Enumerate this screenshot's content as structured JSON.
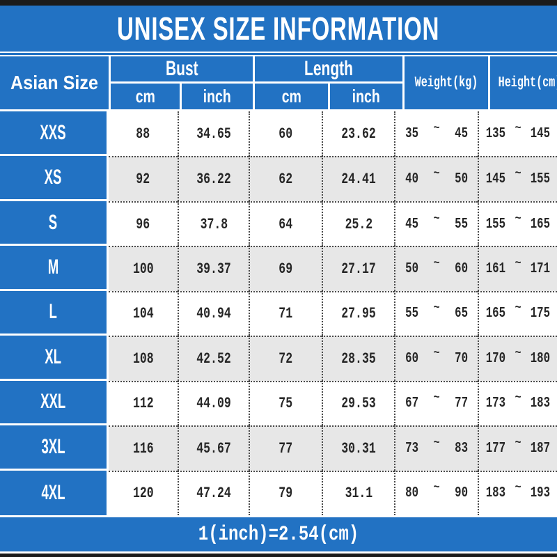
{
  "title": "UNISEX SIZE INFORMATION",
  "colors": {
    "blue": "#2272c3",
    "gray_row": "#e7e7e7",
    "black_bar": "#1b1b1b",
    "text_dark": "#262626",
    "white": "#ffffff"
  },
  "table": {
    "size_col_header": "Asian Size",
    "groups": [
      {
        "label": "Bust",
        "sub": [
          "cm",
          "inch"
        ]
      },
      {
        "label": "Length",
        "sub": [
          "cm",
          "inch"
        ]
      }
    ],
    "single_headers": [
      "Weight(kg)",
      "Height(cm)"
    ],
    "tilde": "~",
    "rows": [
      {
        "size": "XXS",
        "bust_cm": "88",
        "bust_inch": "34.65",
        "length_cm": "60",
        "length_inch": "23.62",
        "weight": [
          "35",
          "45"
        ],
        "height": [
          "135",
          "145"
        ]
      },
      {
        "size": "XS",
        "bust_cm": "92",
        "bust_inch": "36.22",
        "length_cm": "62",
        "length_inch": "24.41",
        "weight": [
          "40",
          "50"
        ],
        "height": [
          "145",
          "155"
        ]
      },
      {
        "size": "S",
        "bust_cm": "96",
        "bust_inch": "37.8",
        "length_cm": "64",
        "length_inch": "25.2",
        "weight": [
          "45",
          "55"
        ],
        "height": [
          "155",
          "165"
        ]
      },
      {
        "size": "M",
        "bust_cm": "100",
        "bust_inch": "39.37",
        "length_cm": "69",
        "length_inch": "27.17",
        "weight": [
          "50",
          "60"
        ],
        "height": [
          "161",
          "171"
        ]
      },
      {
        "size": "L",
        "bust_cm": "104",
        "bust_inch": "40.94",
        "length_cm": "71",
        "length_inch": "27.95",
        "weight": [
          "55",
          "65"
        ],
        "height": [
          "165",
          "175"
        ]
      },
      {
        "size": "XL",
        "bust_cm": "108",
        "bust_inch": "42.52",
        "length_cm": "72",
        "length_inch": "28.35",
        "weight": [
          "60",
          "70"
        ],
        "height": [
          "170",
          "180"
        ]
      },
      {
        "size": "XXL",
        "bust_cm": "112",
        "bust_inch": "44.09",
        "length_cm": "75",
        "length_inch": "29.53",
        "weight": [
          "67",
          "77"
        ],
        "height": [
          "173",
          "183"
        ]
      },
      {
        "size": "3XL",
        "bust_cm": "116",
        "bust_inch": "45.67",
        "length_cm": "77",
        "length_inch": "30.31",
        "weight": [
          "73",
          "83"
        ],
        "height": [
          "177",
          "187"
        ]
      },
      {
        "size": "4XL",
        "bust_cm": "120",
        "bust_inch": "47.24",
        "length_cm": "79",
        "length_inch": "31.1",
        "weight": [
          "80",
          "90"
        ],
        "height": [
          "183",
          "193"
        ]
      }
    ]
  },
  "footer": {
    "formula": "1(inch)=2.54(cm)"
  }
}
